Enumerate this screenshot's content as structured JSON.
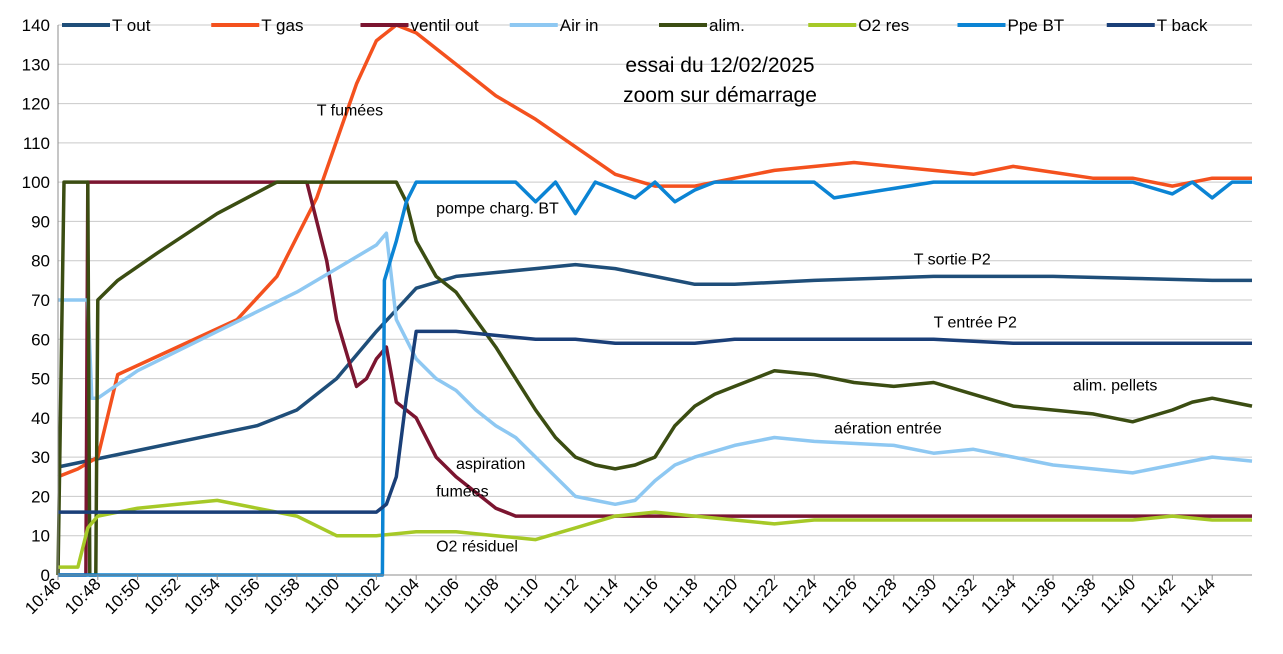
{
  "chart_data": {
    "type": "line",
    "title": "essai du 12/02/2025",
    "subtitle": "zoom sur démarrage",
    "xlabel": "",
    "ylabel": "",
    "ylim": [
      0,
      140
    ],
    "yticks": [
      0,
      10,
      20,
      30,
      40,
      50,
      60,
      70,
      80,
      90,
      100,
      110,
      120,
      130,
      140
    ],
    "xlim": [
      "10:46",
      "11:46"
    ],
    "xticks": [
      "10:46",
      "10:48",
      "10:50",
      "10:52",
      "10:54",
      "10:56",
      "10:58",
      "11:00",
      "11:02",
      "11:04",
      "11:06",
      "11:08",
      "11:10",
      "11:12",
      "11:14",
      "11:16",
      "11:18",
      "11:20",
      "11:22",
      "11:24",
      "11:26",
      "11:28",
      "11:30",
      "11:32",
      "11:34",
      "11:36",
      "11:38",
      "11:40",
      "11:42",
      "11:44"
    ],
    "grid": true,
    "legend_position": "top",
    "series": [
      {
        "name": "T out",
        "color": "#1f4e79",
        "x": [
          "10:46",
          "10:56",
          "10:58",
          "11:00",
          "11:02",
          "11:04",
          "11:06",
          "11:08",
          "11:10",
          "11:12",
          "11:14",
          "11:16",
          "11:18",
          "11:20",
          "11:24",
          "11:30",
          "11:36",
          "11:40",
          "11:44",
          "11:46"
        ],
        "values": [
          27.5,
          38,
          42,
          50,
          62,
          73,
          76,
          77,
          78,
          79,
          78,
          76,
          74,
          74,
          75,
          76,
          76,
          75.5,
          75,
          75
        ]
      },
      {
        "name": "T gas",
        "color": "#f4511e",
        "x": [
          "10:46",
          "10:47",
          "10:48",
          "10:49",
          "10:52",
          "10:55",
          "10:57",
          "10:59",
          "11:01",
          "11:02",
          "11:03",
          "11:04",
          "11:06",
          "11:08",
          "11:10",
          "11:12",
          "11:14",
          "11:16",
          "11:18",
          "11:20",
          "11:22",
          "11:26",
          "11:30",
          "11:32",
          "11:34",
          "11:38",
          "11:40",
          "11:42",
          "11:44",
          "11:46"
        ],
        "values": [
          25,
          27,
          30,
          51,
          58,
          65,
          76,
          96,
          125,
          136,
          140,
          138,
          130,
          122,
          116,
          109,
          102,
          99,
          99,
          101,
          103,
          105,
          103,
          102,
          104,
          101,
          101,
          99,
          101,
          101
        ]
      },
      {
        "name": "ventil out",
        "color": "#7b1530",
        "x": [
          "10:46",
          "10:47.4",
          "10:47.5",
          "10:58.5",
          "10:59.5",
          "11:00",
          "11:01",
          "11:01.5",
          "11:02",
          "11:02.5",
          "11:03",
          "11:04",
          "11:05",
          "11:06",
          "11:07",
          "11:08",
          "11:09",
          "11:46"
        ],
        "values": [
          0,
          0,
          100,
          100,
          80,
          65,
          48,
          50,
          55,
          58,
          44,
          40,
          30,
          25,
          21,
          17,
          15,
          15
        ]
      },
      {
        "name": "Air in",
        "color": "#8ec8f2",
        "x": [
          "10:46",
          "10:47.5",
          "10:47.7",
          "10:48",
          "10:50",
          "10:54",
          "10:58",
          "11:00",
          "11:02",
          "11:02.5",
          "11:03",
          "11:04",
          "11:05",
          "11:06",
          "11:07",
          "11:08",
          "11:09",
          "11:10",
          "11:11",
          "11:12",
          "11:13",
          "11:14",
          "11:15",
          "11:16",
          "11:17",
          "11:18",
          "11:20",
          "11:22",
          "11:24",
          "11:28",
          "11:30",
          "11:32",
          "11:34",
          "11:36",
          "11:38",
          "11:40",
          "11:42",
          "11:44",
          "11:46"
        ],
        "values": [
          70,
          70,
          45,
          45,
          52,
          62,
          72,
          78,
          84,
          87,
          65,
          55,
          50,
          47,
          42,
          38,
          35,
          30,
          25,
          20,
          19,
          18,
          19,
          24,
          28,
          30,
          33,
          35,
          34,
          33,
          31,
          32,
          30,
          28,
          27,
          26,
          28,
          30,
          29
        ]
      },
      {
        "name": "alim.",
        "color": "#3b4d12",
        "x": [
          "10:46",
          "10:46.3",
          "10:47.5",
          "10:47.6",
          "10:47.9",
          "10:48",
          "10:49",
          "10:51",
          "10:54",
          "10:57",
          "10:57.1",
          "11:02",
          "11:03",
          "11:03.5",
          "11:04",
          "11:05",
          "11:06",
          "11:07",
          "11:08",
          "11:09",
          "11:10",
          "11:11",
          "11:12",
          "11:13",
          "11:14",
          "11:15",
          "11:16",
          "11:17",
          "11:18",
          "11:19",
          "11:20",
          "11:21",
          "11:22",
          "11:24",
          "11:26",
          "11:28",
          "11:30",
          "11:32",
          "11:34",
          "11:36",
          "11:38",
          "11:40",
          "11:42",
          "11:43",
          "11:44",
          "11:45",
          "11:46"
        ],
        "values": [
          0,
          100,
          100,
          0,
          0,
          70,
          75,
          82,
          92,
          100,
          100,
          100,
          100,
          95,
          85,
          76,
          72,
          65,
          58,
          50,
          42,
          35,
          30,
          28,
          27,
          28,
          30,
          38,
          43,
          46,
          48,
          50,
          52,
          51,
          49,
          48,
          49,
          46,
          43,
          42,
          41,
          39,
          42,
          44,
          45,
          44,
          43
        ]
      },
      {
        "name": "O2 res",
        "color": "#a6c927",
        "x": [
          "10:46",
          "10:47",
          "10:47.5",
          "10:48",
          "10:50",
          "10:52",
          "10:54",
          "10:56",
          "10:58",
          "11:00",
          "11:02",
          "11:04",
          "11:06",
          "11:08",
          "11:10",
          "11:12",
          "11:14",
          "11:16",
          "11:18",
          "11:20",
          "11:22",
          "11:24",
          "11:26",
          "11:28",
          "11:30",
          "11:32",
          "11:34",
          "11:36",
          "11:38",
          "11:40",
          "11:42",
          "11:44",
          "11:46"
        ],
        "values": [
          2,
          2,
          12,
          15,
          17,
          18,
          19,
          17,
          15,
          10,
          10,
          11,
          11,
          10,
          9,
          12,
          15,
          16,
          15,
          14,
          13,
          14,
          14,
          14,
          14,
          14,
          14,
          14,
          14,
          14,
          15,
          14,
          14
        ]
      },
      {
        "name": "Ppe BT",
        "color": "#0b84d4",
        "x": [
          "10:46",
          "11:02.3",
          "11:02.4",
          "11:03",
          "11:03.5",
          "11:04",
          "11:09",
          "11:10",
          "11:11",
          "11:12",
          "11:13",
          "11:14",
          "11:15",
          "11:16",
          "11:17",
          "11:18",
          "11:19",
          "11:20",
          "11:24",
          "11:25",
          "11:30",
          "11:40",
          "11:42",
          "11:43",
          "11:44",
          "11:45",
          "11:46"
        ],
        "values": [
          0,
          0,
          75,
          85,
          95,
          100,
          100,
          95,
          100,
          92,
          100,
          98,
          96,
          100,
          95,
          98,
          100,
          100,
          100,
          96,
          100,
          100,
          97,
          100,
          96,
          100,
          100
        ]
      },
      {
        "name": "T back",
        "color": "#1a3f78",
        "x": [
          "10:46",
          "11:02",
          "11:02.5",
          "11:03",
          "11:03.5",
          "11:04",
          "11:06",
          "11:08",
          "11:10",
          "11:12",
          "11:14",
          "11:16",
          "11:18",
          "11:20",
          "11:24",
          "11:30",
          "11:34",
          "11:40",
          "11:46"
        ],
        "values": [
          16,
          16,
          18,
          25,
          45,
          62,
          62,
          61,
          60,
          60,
          59,
          59,
          59,
          60,
          60,
          60,
          59,
          59,
          59
        ]
      }
    ],
    "annotations": [
      {
        "text": "T fumées",
        "x": "10:59",
        "y": 117
      },
      {
        "text": "pompe charg. BT",
        "x": "11:05",
        "y": 92
      },
      {
        "text": "T sortie P2",
        "x": "11:29",
        "y": 79
      },
      {
        "text": "T entrée P2",
        "x": "11:30",
        "y": 63
      },
      {
        "text": "alim. pellets",
        "x": "11:37",
        "y": 47
      },
      {
        "text": "aération entrée",
        "x": "11:25",
        "y": 36
      },
      {
        "text": "aspiration",
        "x": "11:06",
        "y": 27
      },
      {
        "text": "fumées",
        "x": "11:05",
        "y": 20
      },
      {
        "text": "O2 résiduel",
        "x": "11:05",
        "y": 6
      }
    ]
  }
}
